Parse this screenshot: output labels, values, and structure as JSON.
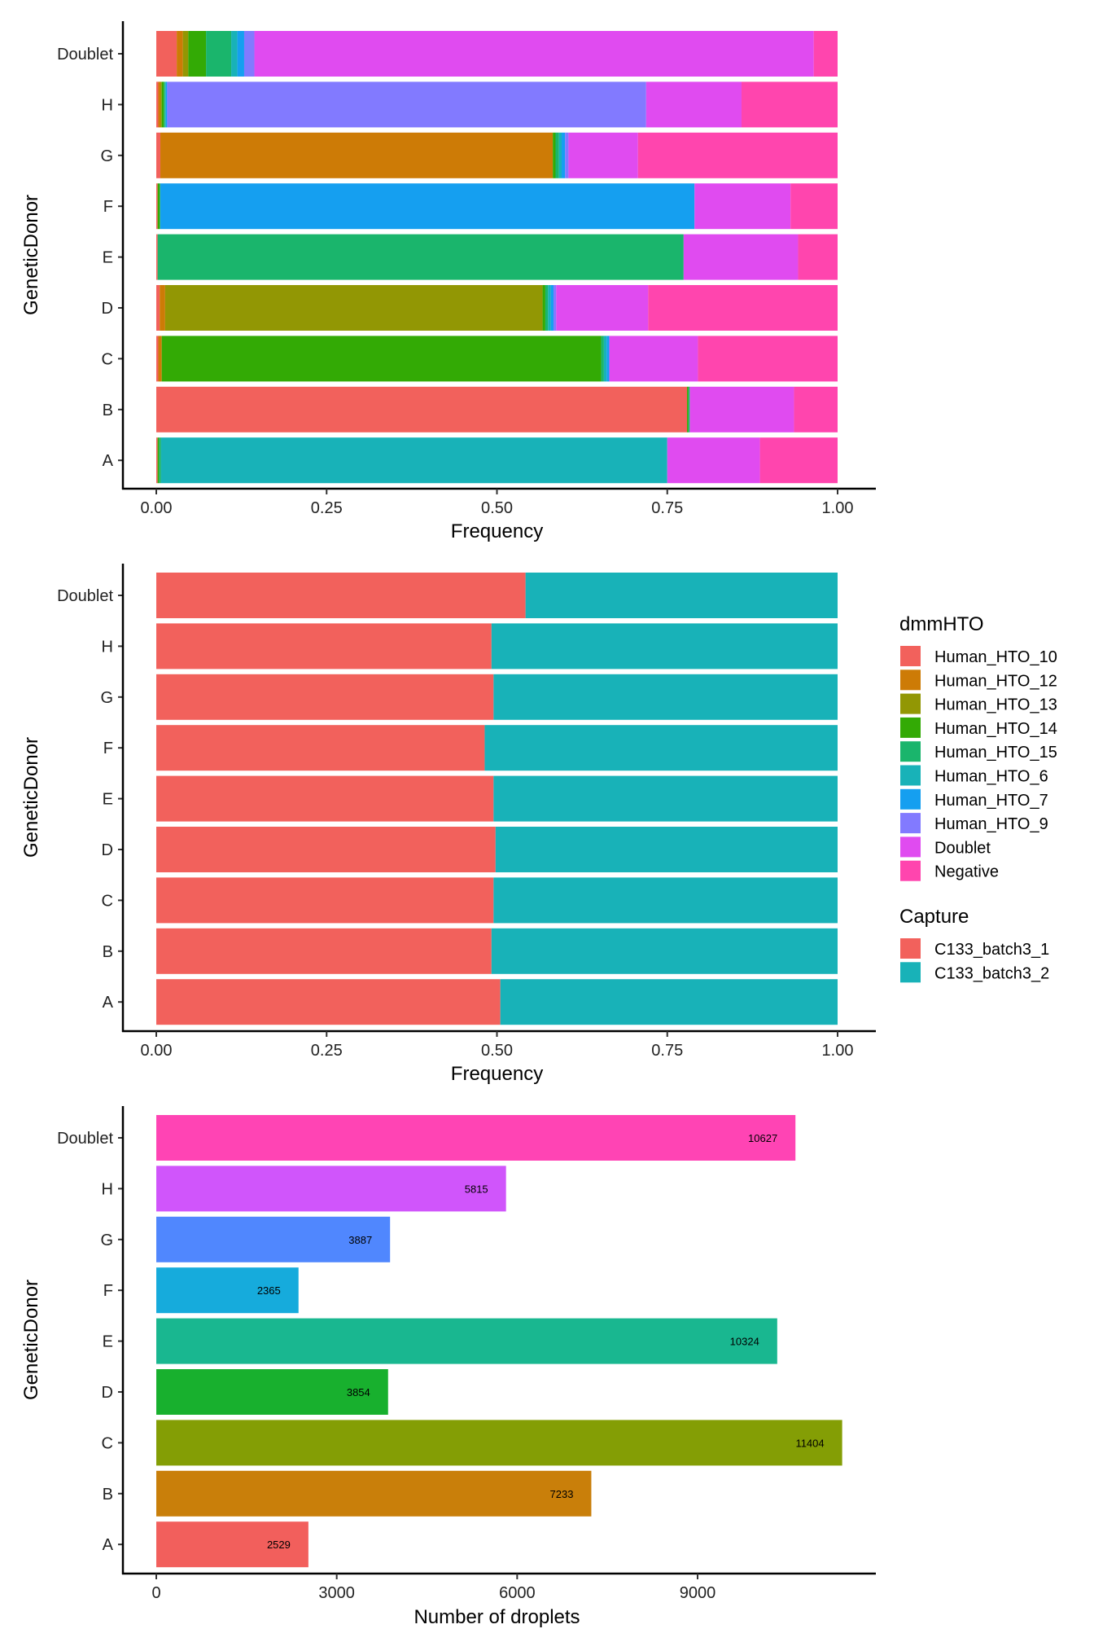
{
  "dmm_colors": {
    "Human_HTO_10": "#F2615C",
    "Human_HTO_12": "#CD7B06",
    "Human_HTO_13": "#929704",
    "Human_HTO_14": "#33AA05",
    "Human_HTO_15": "#1AB56C",
    "Human_HTO_6": "#18B2B8",
    "Human_HTO_7": "#159FF0",
    "Human_HTO_9": "#827AFF",
    "Doublet": "#E04BF0",
    "Negative": "#FF45AE"
  },
  "legend": {
    "dmm_title": "dmmHTO",
    "dmm_items": [
      "Human_HTO_10",
      "Human_HTO_12",
      "Human_HTO_13",
      "Human_HTO_14",
      "Human_HTO_15",
      "Human_HTO_6",
      "Human_HTO_7",
      "Human_HTO_9",
      "Doublet",
      "Negative"
    ],
    "capture_title": "Capture",
    "capture_items": [
      "C133_batch3_1",
      "C133_batch3_2"
    ]
  },
  "chart_data": [
    {
      "type": "bar",
      "stacked": true,
      "orientation": "horizontal",
      "categories": [
        "A",
        "B",
        "C",
        "D",
        "E",
        "F",
        "G",
        "H",
        "Doublet"
      ],
      "xlabel": "Frequency",
      "ylabel": "GeneticDonor",
      "xlim": [
        0,
        1
      ],
      "xticks": [
        "0.00",
        "0.25",
        "0.50",
        "0.75",
        "1.00"
      ],
      "legend_title": "dmmHTO",
      "series_order": [
        "Human_HTO_10",
        "Human_HTO_12",
        "Human_HTO_13",
        "Human_HTO_14",
        "Human_HTO_15",
        "Human_HTO_6",
        "Human_HTO_7",
        "Human_HTO_9",
        "Doublet",
        "Negative"
      ],
      "rows": {
        "A": {
          "Human_HTO_10": 0.002,
          "Human_HTO_14": 0.002,
          "Human_HTO_15": 0.003,
          "Human_HTO_6": 0.743,
          "Doublet": 0.136,
          "Negative": 0.114
        },
        "B": {
          "Human_HTO_10": 0.779,
          "Human_HTO_14": 0.002,
          "Human_HTO_15": 0.002,
          "Doublet": 0.153,
          "Negative": 0.064
        },
        "C": {
          "Human_HTO_10": 0.003,
          "Human_HTO_12": 0.005,
          "Human_HTO_14": 0.645,
          "Human_HTO_15": 0.004,
          "Human_HTO_6": 0.004,
          "Human_HTO_7": 0.004,
          "Doublet": 0.13,
          "Negative": 0.205
        },
        "D": {
          "Human_HTO_10": 0.005,
          "Human_HTO_12": 0.008,
          "Human_HTO_13": 0.554,
          "Human_HTO_14": 0.004,
          "Human_HTO_15": 0.004,
          "Human_HTO_6": 0.004,
          "Human_HTO_7": 0.004,
          "Human_HTO_9": 0.004,
          "Doublet": 0.135,
          "Negative": 0.278
        },
        "E": {
          "Human_HTO_10": 0.002,
          "Human_HTO_15": 0.772,
          "Doublet": 0.168,
          "Negative": 0.058
        },
        "F": {
          "Human_HTO_10": 0.002,
          "Human_HTO_14": 0.003,
          "Human_HTO_15": 0.001,
          "Human_HTO_7": 0.784,
          "Doublet": 0.141,
          "Negative": 0.069
        },
        "G": {
          "Human_HTO_10": 0.006,
          "Human_HTO_12": 0.576,
          "Human_HTO_14": 0.004,
          "Human_HTO_15": 0.005,
          "Human_HTO_6": 0.004,
          "Human_HTO_7": 0.005,
          "Human_HTO_9": 0.005,
          "Doublet": 0.102,
          "Negative": 0.293
        },
        "H": {
          "Human_HTO_10": 0.003,
          "Human_HTO_12": 0.003,
          "Human_HTO_13": 0.002,
          "Human_HTO_14": 0.003,
          "Human_HTO_15": 0.002,
          "Human_HTO_6": 0.001,
          "Human_HTO_7": 0.002,
          "Human_HTO_9": 0.703,
          "Doublet": 0.14,
          "Negative": 0.141
        },
        "Doublet": {
          "Human_HTO_10": 0.03,
          "Human_HTO_12": 0.009,
          "Human_HTO_13": 0.008,
          "Human_HTO_14": 0.026,
          "Human_HTO_15": 0.037,
          "Human_HTO_6": 0.009,
          "Human_HTO_7": 0.01,
          "Human_HTO_9": 0.015,
          "Doublet": 0.821,
          "Negative": 0.035
        }
      }
    },
    {
      "type": "bar",
      "stacked": true,
      "orientation": "horizontal",
      "categories": [
        "A",
        "B",
        "C",
        "D",
        "E",
        "F",
        "G",
        "H",
        "Doublet"
      ],
      "xlabel": "Frequency",
      "ylabel": "GeneticDonor",
      "xlim": [
        0,
        1
      ],
      "xticks": [
        "0.00",
        "0.25",
        "0.50",
        "0.75",
        "1.00"
      ],
      "legend_title": "Capture",
      "series": [
        {
          "name": "C133_batch3_1",
          "color": "#F2615C",
          "values": [
            0.505,
            0.492,
            0.495,
            0.498,
            0.495,
            0.482,
            0.495,
            0.492,
            0.542
          ]
        },
        {
          "name": "C133_batch3_2",
          "color": "#18B2B8",
          "values": [
            0.495,
            0.508,
            0.505,
            0.502,
            0.505,
            0.518,
            0.505,
            0.508,
            0.458
          ]
        }
      ]
    },
    {
      "type": "bar",
      "orientation": "horizontal",
      "categories": [
        "A",
        "B",
        "C",
        "D",
        "E",
        "F",
        "G",
        "H",
        "Doublet"
      ],
      "values": [
        2529,
        7233,
        11404,
        3854,
        10324,
        2365,
        3887,
        5815,
        10627
      ],
      "data_labels": [
        "2529",
        "7233",
        "11404",
        "3854",
        "10324",
        "2365",
        "3887",
        "5815",
        "10627"
      ],
      "colors": [
        "#F25F5C",
        "#C97F0A",
        "#849E05",
        "#18B02E",
        "#19B790",
        "#16ABDC",
        "#5087FE",
        "#D055FB",
        "#FF44B4"
      ],
      "xlabel": "Number of droplets",
      "ylabel": "GeneticDonor",
      "xlim": [
        0,
        11404
      ],
      "xticks": [
        "0",
        "3000",
        "6000",
        "9000"
      ],
      "xtick_values": [
        0,
        3000,
        6000,
        9000
      ]
    }
  ]
}
